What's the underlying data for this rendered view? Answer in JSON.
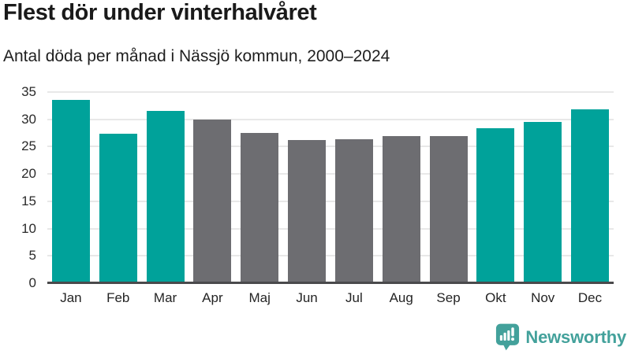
{
  "title": "Flest dör under vinterhalvåret",
  "subtitle": "Antal döda per månad i Nässjö kommun, 2000–2024",
  "colors": {
    "teal": "#00a29a",
    "gray": "#6d6d71",
    "grid": "#e8e8e8",
    "axis": "#4a4a4c",
    "logo_teal": "#43a19b",
    "title_text": "#1a1a1a"
  },
  "chart_data": {
    "type": "bar",
    "title": "Flest dör under vinterhalvåret",
    "subtitle": "Antal döda per månad i Nässjö kommun, 2000–2024",
    "categories": [
      "Jan",
      "Feb",
      "Mar",
      "Apr",
      "Maj",
      "Jun",
      "Jul",
      "Aug",
      "Sep",
      "Okt",
      "Nov",
      "Dec"
    ],
    "values": [
      33.6,
      27.3,
      31.6,
      30.0,
      27.5,
      26.2,
      26.3,
      27.0,
      27.0,
      28.4,
      29.5,
      31.8
    ],
    "bar_colors": [
      "teal",
      "teal",
      "teal",
      "gray",
      "gray",
      "gray",
      "gray",
      "gray",
      "gray",
      "teal",
      "teal",
      "teal"
    ],
    "xlabel": "",
    "ylabel": "",
    "ylim": [
      0,
      35
    ],
    "yticks": [
      0,
      5,
      10,
      15,
      20,
      25,
      30,
      35
    ],
    "grid": "horizontal",
    "legend": "none"
  },
  "logo": {
    "label": "Newsworthy"
  }
}
